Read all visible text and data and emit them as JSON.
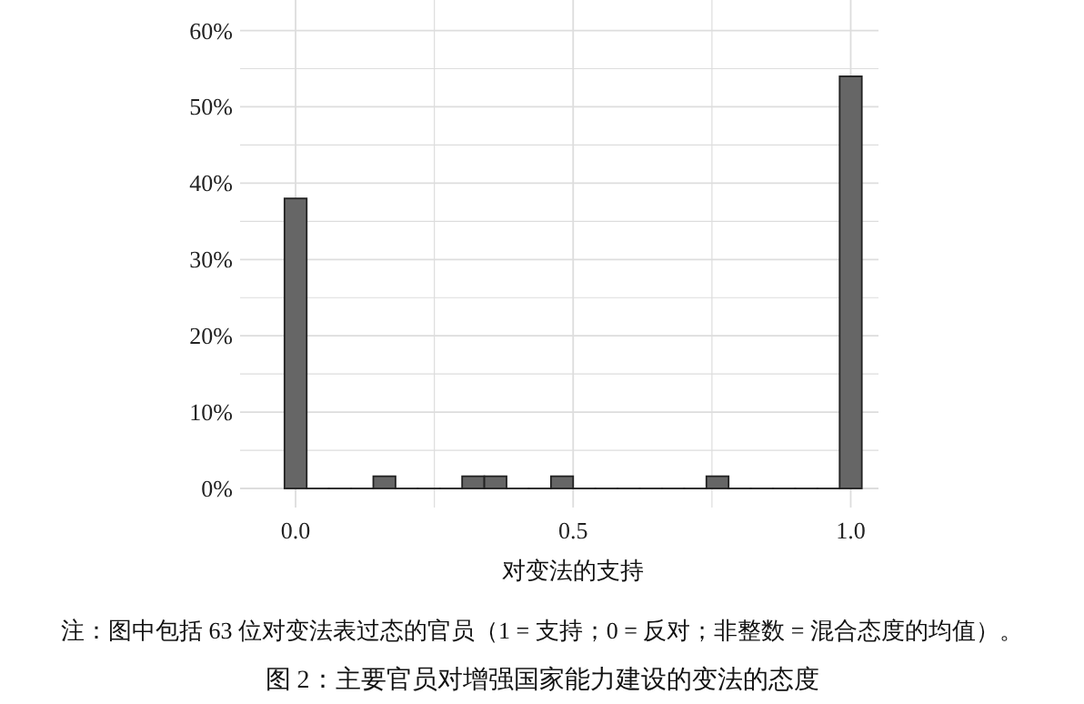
{
  "chart_data": {
    "type": "histogram",
    "xlabel": "对变法的支持",
    "bins": [
      -0.02,
      0.02,
      0.06,
      0.1,
      0.14,
      0.18,
      0.22,
      0.26,
      0.3,
      0.34,
      0.38,
      0.42,
      0.46,
      0.5,
      0.54,
      0.58,
      0.62,
      0.66,
      0.7,
      0.74,
      0.78,
      0.82,
      0.86,
      0.9,
      0.94,
      0.98,
      1.02
    ],
    "values": [
      38,
      0,
      0,
      0,
      1.6,
      0,
      0,
      0,
      1.6,
      1.6,
      0,
      0,
      1.6,
      0,
      0,
      0,
      0,
      0,
      0,
      1.6,
      0,
      0,
      0,
      0,
      0,
      54
    ],
    "color": "#666666",
    "xlim": [
      -0.1,
      1.05
    ],
    "xticks": [
      {
        "value": 0,
        "label": "0.0"
      },
      {
        "value": 0.25,
        "label": null
      },
      {
        "value": 0.5,
        "label": "0.5"
      },
      {
        "value": 0.75,
        "label": null
      },
      {
        "value": 1,
        "label": "1.0"
      }
    ],
    "ylim": [
      -2.5,
      64
    ],
    "yticks": [
      {
        "value": 0,
        "label": "0%"
      },
      {
        "value": 5,
        "label": null
      },
      {
        "value": 10,
        "label": "10%"
      },
      {
        "value": 15,
        "label": null
      },
      {
        "value": 20,
        "label": "20%"
      },
      {
        "value": 25,
        "label": null
      },
      {
        "value": 30,
        "label": "30%"
      },
      {
        "value": 35,
        "label": null
      },
      {
        "value": 40,
        "label": "40%"
      },
      {
        "value": 45,
        "label": null
      },
      {
        "value": 50,
        "label": "50%"
      },
      {
        "value": 55,
        "label": null
      },
      {
        "value": 60,
        "label": "60%"
      }
    ],
    "grid": true,
    "annotations": [
      "注：图中包括 63 位对变法表过态的官员（1 = 支持；0 = 反对；非整数 = 混合态度的均值）。",
      "图 2：主要官员对增强国家能力建设的变法的态度"
    ]
  }
}
